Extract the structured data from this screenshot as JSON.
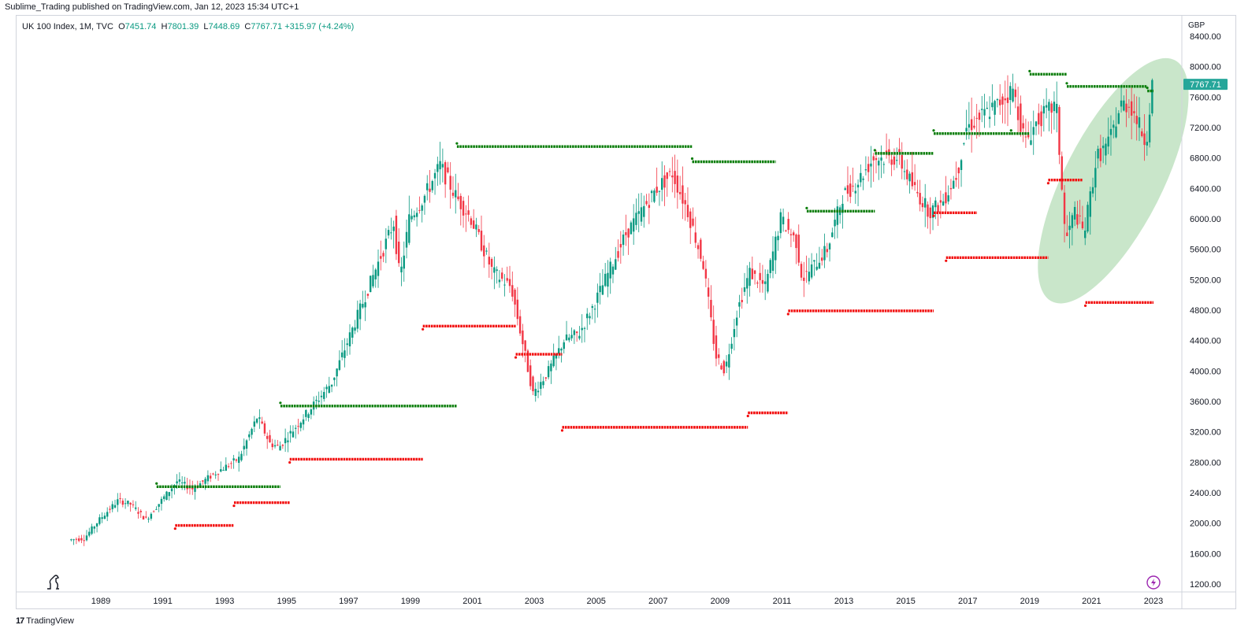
{
  "header": {
    "published": "Sublime_Trading published on TradingView.com, Jan 12, 2023 15:34 UTC+1"
  },
  "legend": {
    "symbol": "UK 100 Index, 1M, TVC",
    "open": "7451.74",
    "high": "7801.39",
    "low": "7448.69",
    "close": "7767.71",
    "change": "+315.97 (+4.24%)"
  },
  "footer": {
    "brand": "TradingView"
  },
  "chart_data": {
    "type": "line",
    "title": "",
    "currency": "GBP",
    "last_price": "7767.71",
    "grid": false,
    "ylim": [
      1050,
      8500
    ],
    "y_ticks": [
      "8400.00",
      "8000.00",
      "7600.00",
      "7200.00",
      "6800.00",
      "6400.00",
      "6000.00",
      "5600.00",
      "5200.00",
      "4800.00",
      "4400.00",
      "4000.00",
      "3600.00",
      "3200.00",
      "2800.00",
      "2400.00",
      "2000.00",
      "1600.00",
      "1200.00"
    ],
    "x_ticks": [
      "1989",
      "1991",
      "1993",
      "1995",
      "1997",
      "1999",
      "2001",
      "2003",
      "2005",
      "2007",
      "2009",
      "2011",
      "2013",
      "2015",
      "2017",
      "2019",
      "2021",
      "2023"
    ],
    "price_path": {
      "x": [
        1988.0,
        1988.5,
        1989.0,
        1989.6,
        1990.0,
        1990.5,
        1990.8,
        1991.5,
        1992.0,
        1992.7,
        1993.5,
        1994.1,
        1994.5,
        1994.8,
        1995.5,
        1996.5,
        1997.5,
        1998.5,
        1998.7,
        1999.0,
        1999.5,
        2000.0,
        2000.5,
        2001.0,
        2001.7,
        2002.3,
        2002.6,
        2003.0,
        2003.5,
        2004.0,
        2004.5,
        2005.0,
        2006.0,
        2007.0,
        2007.5,
        2008.0,
        2008.5,
        2008.9,
        2009.2,
        2009.6,
        2010.0,
        2010.5,
        2011.0,
        2011.5,
        2011.7,
        2012.5,
        2013.0,
        2013.5,
        2014.0,
        2014.8,
        2015.3,
        2015.8,
        2016.2,
        2016.7,
        2017.0,
        2018.0,
        2018.5,
        2018.9,
        2019.3,
        2019.9,
        2020.2,
        2020.5,
        2020.8,
        2021.2,
        2021.6,
        2022.0,
        2022.3,
        2022.6,
        2022.8,
        2023.0
      ],
      "y": [
        1780,
        1800,
        2050,
        2300,
        2250,
        2050,
        2200,
        2550,
        2450,
        2650,
        2850,
        3400,
        3050,
        3000,
        3350,
        3850,
        4900,
        5950,
        5200,
        6000,
        6300,
        6700,
        6300,
        6000,
        5300,
        5100,
        4500,
        3700,
        4000,
        4400,
        4500,
        4900,
        5800,
        6400,
        6600,
        6100,
        5400,
        4200,
        4000,
        4800,
        5300,
        5100,
        6000,
        5700,
        5200,
        5600,
        6300,
        6500,
        6800,
        6800,
        6400,
        6100,
        6200,
        6600,
        7200,
        7500,
        7700,
        7000,
        7300,
        7500,
        5700,
        6100,
        5800,
        6800,
        7000,
        7500,
        7500,
        7200,
        7000,
        7768
      ]
    },
    "resistance_levels": [
      {
        "y": 2480,
        "x_start": 1990.8,
        "x_end": 1994.8
      },
      {
        "y": 3540,
        "x_start": 1994.8,
        "x_end": 2000.5
      },
      {
        "y": 6950,
        "x_start": 2000.5,
        "x_end": 2008.1
      },
      {
        "y": 6750,
        "x_start": 2008.1,
        "x_end": 2010.8
      },
      {
        "y": 6100,
        "x_start": 2011.8,
        "x_end": 2014.0
      },
      {
        "y": 6860,
        "x_start": 2014.0,
        "x_end": 2015.9
      },
      {
        "y": 7120,
        "x_start": 2015.9,
        "x_end": 2018.4
      },
      {
        "y": 7120,
        "x_start": 2018.4,
        "x_end": 2019.0
      },
      {
        "y": 7900,
        "x_start": 2019.0,
        "x_end": 2020.2
      },
      {
        "y": 7740,
        "x_start": 2020.2,
        "x_end": 2022.8
      },
      {
        "y": 7680,
        "x_start": 2022.8,
        "x_end": 2023.0
      }
    ],
    "support_levels": [
      {
        "y": 1970,
        "x_start": 1991.4,
        "x_end": 1993.3
      },
      {
        "y": 2270,
        "x_start": 1993.3,
        "x_end": 1995.1
      },
      {
        "y": 2840,
        "x_start": 1995.1,
        "x_end": 1999.4
      },
      {
        "y": 4590,
        "x_start": 1999.4,
        "x_end": 2002.4
      },
      {
        "y": 4220,
        "x_start": 2002.4,
        "x_end": 2003.9
      },
      {
        "y": 3260,
        "x_start": 2003.9,
        "x_end": 2009.9
      },
      {
        "y": 3450,
        "x_start": 2009.9,
        "x_end": 2011.2
      },
      {
        "y": 4790,
        "x_start": 2011.2,
        "x_end": 2015.9
      },
      {
        "y": 6080,
        "x_start": 2015.9,
        "x_end": 2017.3
      },
      {
        "y": 5490,
        "x_start": 2016.3,
        "x_end": 2019.6
      },
      {
        "y": 6510,
        "x_start": 2019.6,
        "x_end": 2020.7
      },
      {
        "y": 4900,
        "x_start": 2020.8,
        "x_end": 2023.0
      }
    ],
    "highlight": {
      "x_center": 2021.7,
      "y_center": 6500,
      "color": "#a5d6a7"
    },
    "colors": {
      "up": "#089981",
      "down": "#f23645",
      "resistance": "#0a7d0a",
      "support": "#f20d0d",
      "label_bg": "#26a69a"
    }
  }
}
